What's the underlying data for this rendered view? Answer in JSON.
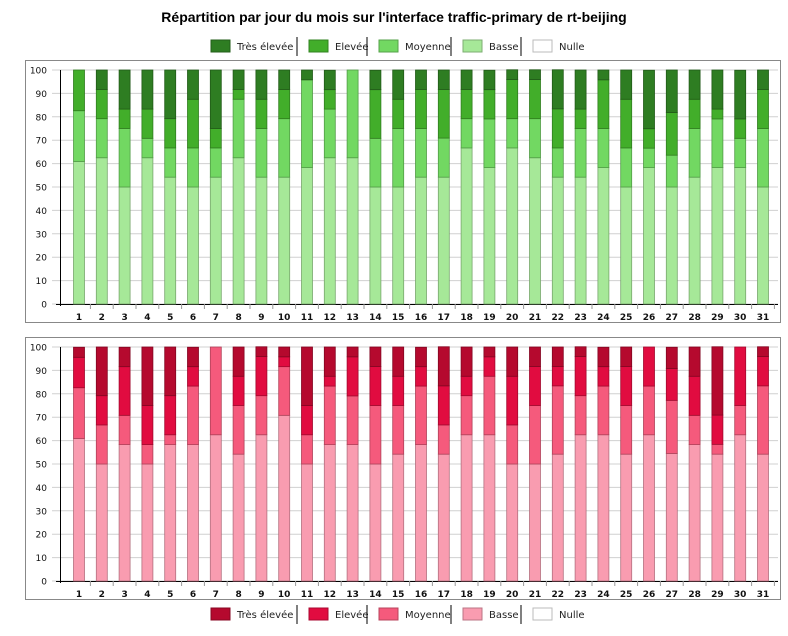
{
  "title": "Répartition par jour du mois sur l'interface traffic-primary de rt-beijing",
  "chart_data": [
    {
      "type": "bar",
      "stacked": true,
      "categories": [
        "1",
        "2",
        "3",
        "4",
        "5",
        "6",
        "7",
        "8",
        "9",
        "10",
        "11",
        "12",
        "13",
        "14",
        "15",
        "16",
        "17",
        "18",
        "19",
        "20",
        "21",
        "22",
        "23",
        "24",
        "25",
        "26",
        "27",
        "28",
        "29",
        "30",
        "31"
      ],
      "ylim": [
        0,
        100
      ],
      "yticks": [
        0,
        10,
        20,
        30,
        40,
        50,
        60,
        70,
        80,
        90,
        100
      ],
      "grid": true,
      "legend_placement": "top",
      "legend": [
        "Très élevée",
        "Elevée",
        "Moyenne",
        "Basse",
        "Nulle"
      ],
      "legend_colors": [
        "#2e7d22",
        "#42ae2a",
        "#72d862",
        "#a6e898",
        "#ffffff"
      ],
      "series": [
        {
          "name": "Basse",
          "color": "#a6e898",
          "values": [
            60.9,
            62.5,
            50,
            62.5,
            54.2,
            50,
            54.2,
            62.5,
            54.2,
            54.2,
            58.3,
            62.5,
            62.5,
            50,
            50,
            54.2,
            54.2,
            66.7,
            58.3,
            66.7,
            62.5,
            54.2,
            54.2,
            58.3,
            50,
            58.3,
            50,
            54.2,
            58.3,
            58.3,
            50
          ]
        },
        {
          "name": "Moyenne",
          "color": "#72d862",
          "values": [
            21.7,
            16.7,
            25,
            8.3,
            12.5,
            16.7,
            12.5,
            25,
            20.8,
            25,
            37.5,
            20.8,
            37.5,
            20.8,
            25,
            20.8,
            16.7,
            12.5,
            20.8,
            12.5,
            16.7,
            12.5,
            20.8,
            16.7,
            16.7,
            8.3,
            13.6,
            20.8,
            20.8,
            12.5,
            25
          ]
        },
        {
          "name": "Elevée",
          "color": "#42ae2a",
          "values": [
            17.4,
            12.5,
            8.3,
            12.5,
            12.5,
            20.8,
            8.3,
            4.2,
            12.5,
            12.5,
            0,
            8.3,
            0,
            20.8,
            12.5,
            16.7,
            20.8,
            12.5,
            12.5,
            16.7,
            16.7,
            16.7,
            8.3,
            20.8,
            20.8,
            8.3,
            18.2,
            12.5,
            4.2,
            8.3,
            16.7
          ]
        },
        {
          "name": "Très élevée",
          "color": "#2e7d22",
          "values": [
            0,
            8.3,
            16.7,
            16.7,
            20.8,
            12.5,
            25,
            8.3,
            12.5,
            8.3,
            4.2,
            8.3,
            0,
            8.3,
            12.5,
            8.3,
            8.3,
            8.3,
            8.3,
            4.2,
            4.2,
            16.7,
            16.7,
            4.2,
            12.5,
            25,
            18.2,
            12.5,
            16.7,
            20.8,
            8.3
          ]
        }
      ]
    },
    {
      "type": "bar",
      "stacked": true,
      "categories": [
        "1",
        "2",
        "3",
        "4",
        "5",
        "6",
        "7",
        "8",
        "9",
        "10",
        "11",
        "12",
        "13",
        "14",
        "15",
        "16",
        "17",
        "18",
        "19",
        "20",
        "21",
        "22",
        "23",
        "24",
        "25",
        "26",
        "27",
        "28",
        "29",
        "30",
        "31"
      ],
      "ylim": [
        0,
        100
      ],
      "yticks": [
        0,
        10,
        20,
        30,
        40,
        50,
        60,
        70,
        80,
        90,
        100
      ],
      "grid": true,
      "legend_placement": "bottom",
      "legend": [
        "Très élevée",
        "Elevée",
        "Moyenne",
        "Basse",
        "Nulle"
      ],
      "legend_colors": [
        "#b5092e",
        "#e10c40",
        "#f55a7c",
        "#f99cb0",
        "#ffffff"
      ],
      "series": [
        {
          "name": "Basse",
          "color": "#f99cb0",
          "values": [
            60.9,
            50,
            58.3,
            50,
            58.3,
            58.3,
            62.5,
            54.2,
            62.5,
            70.8,
            50,
            58.3,
            58.3,
            50,
            54.2,
            58.3,
            54.2,
            62.5,
            62.5,
            50,
            50,
            54.2,
            62.5,
            62.5,
            54.2,
            62.5,
            54.5,
            58.3,
            54.2,
            62.5,
            54.2
          ]
        },
        {
          "name": "Moyenne",
          "color": "#f55a7c",
          "values": [
            21.7,
            16.7,
            12.5,
            8.3,
            4.2,
            25,
            37.5,
            20.8,
            16.7,
            20.8,
            12.5,
            25,
            20.8,
            25,
            20.8,
            25,
            12.5,
            16.7,
            25,
            16.7,
            25,
            29.2,
            16.7,
            20.8,
            20.8,
            20.8,
            22.7,
            12.5,
            4.2,
            12.5,
            29.2
          ]
        },
        {
          "name": "Elevée",
          "color": "#e10c40",
          "values": [
            13.0,
            12.5,
            20.8,
            16.7,
            16.7,
            8.3,
            0,
            12.5,
            16.7,
            4.2,
            12.5,
            4.2,
            16.7,
            16.7,
            12.5,
            8.3,
            16.7,
            8.3,
            8.3,
            20.8,
            16.7,
            8.3,
            16.7,
            8.3,
            16.7,
            16.7,
            13.6,
            16.7,
            12.5,
            25,
            12.5
          ]
        },
        {
          "name": "Très élevée",
          "color": "#b5092e",
          "values": [
            4.3,
            20.8,
            8.3,
            25,
            20.8,
            8.3,
            0,
            12.5,
            4.2,
            4.2,
            25,
            12.5,
            4.2,
            8.3,
            12.5,
            8.3,
            16.7,
            12.5,
            4.2,
            12.5,
            8.3,
            8.3,
            4.2,
            8.3,
            8.3,
            0,
            9.1,
            12.5,
            29.2,
            0,
            4.2
          ]
        }
      ]
    }
  ]
}
